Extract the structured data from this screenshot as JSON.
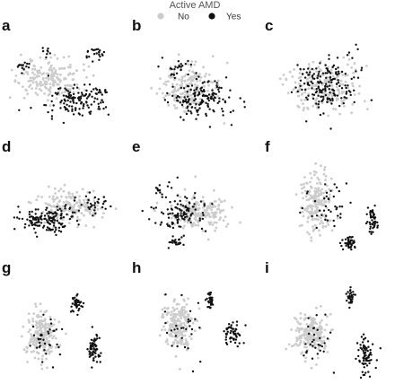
{
  "chart_data": {
    "type": "scatter",
    "legend": {
      "title": "Active AMD",
      "position": "top-center",
      "entries": [
        {
          "label": "No",
          "color": "#cccccc"
        },
        {
          "label": "Yes",
          "color": "#111111"
        }
      ]
    },
    "axes_visible": false,
    "grid": false,
    "panels": [
      {
        "label": "a",
        "no": [
          {
            "cx": 0.38,
            "cy": 0.4,
            "sx": 0.25,
            "sy": 0.18,
            "n": 190
          }
        ],
        "yes": [
          {
            "cx": 0.62,
            "cy": 0.62,
            "sx": 0.22,
            "sy": 0.13,
            "n": 140
          },
          {
            "cx": 0.78,
            "cy": 0.18,
            "sx": 0.08,
            "sy": 0.05,
            "n": 22
          },
          {
            "cx": 0.12,
            "cy": 0.3,
            "sx": 0.06,
            "sy": 0.08,
            "n": 14
          },
          {
            "cx": 0.35,
            "cy": 0.12,
            "sx": 0.05,
            "sy": 0.04,
            "n": 8
          }
        ]
      },
      {
        "label": "b",
        "no": [
          {
            "cx": 0.45,
            "cy": 0.5,
            "sx": 0.22,
            "sy": 0.22,
            "n": 180
          }
        ],
        "yes": [
          {
            "cx": 0.55,
            "cy": 0.62,
            "sx": 0.22,
            "sy": 0.15,
            "n": 150
          },
          {
            "cx": 0.35,
            "cy": 0.3,
            "sx": 0.1,
            "sy": 0.08,
            "n": 25
          }
        ]
      },
      {
        "label": "c",
        "no": [
          {
            "cx": 0.5,
            "cy": 0.5,
            "sx": 0.25,
            "sy": 0.22,
            "n": 200
          }
        ],
        "yes": [
          {
            "cx": 0.5,
            "cy": 0.5,
            "sx": 0.22,
            "sy": 0.25,
            "n": 170
          }
        ]
      },
      {
        "label": "d",
        "no": [
          {
            "cx": 0.55,
            "cy": 0.5,
            "sx": 0.25,
            "sy": 0.15,
            "n": 180
          }
        ],
        "yes": [
          {
            "cx": 0.35,
            "cy": 0.62,
            "sx": 0.22,
            "sy": 0.12,
            "n": 150
          },
          {
            "cx": 0.75,
            "cy": 0.45,
            "sx": 0.12,
            "sy": 0.1,
            "n": 30
          }
        ]
      },
      {
        "label": "e",
        "no": [
          {
            "cx": 0.55,
            "cy": 0.55,
            "sx": 0.22,
            "sy": 0.15,
            "n": 180
          }
        ],
        "yes": [
          {
            "cx": 0.4,
            "cy": 0.55,
            "sx": 0.22,
            "sy": 0.15,
            "n": 110
          },
          {
            "cx": 0.35,
            "cy": 0.85,
            "sx": 0.05,
            "sy": 0.05,
            "n": 22
          },
          {
            "cx": 0.2,
            "cy": 0.3,
            "sx": 0.06,
            "sy": 0.05,
            "n": 12
          }
        ]
      },
      {
        "label": "f",
        "no": [
          {
            "cx": 0.4,
            "cy": 0.45,
            "sx": 0.1,
            "sy": 0.25,
            "n": 200
          }
        ],
        "yes": [
          {
            "cx": 0.7,
            "cy": 0.85,
            "sx": 0.05,
            "sy": 0.05,
            "n": 45
          },
          {
            "cx": 0.92,
            "cy": 0.62,
            "sx": 0.04,
            "sy": 0.12,
            "n": 45
          },
          {
            "cx": 0.5,
            "cy": 0.5,
            "sx": 0.18,
            "sy": 0.22,
            "n": 40
          }
        ]
      },
      {
        "label": "g",
        "no": [
          {
            "cx": 0.3,
            "cy": 0.55,
            "sx": 0.12,
            "sy": 0.2,
            "n": 200
          }
        ],
        "yes": [
          {
            "cx": 0.62,
            "cy": 0.25,
            "sx": 0.05,
            "sy": 0.07,
            "n": 40
          },
          {
            "cx": 0.78,
            "cy": 0.7,
            "sx": 0.05,
            "sy": 0.12,
            "n": 60
          },
          {
            "cx": 0.35,
            "cy": 0.6,
            "sx": 0.12,
            "sy": 0.18,
            "n": 35
          }
        ]
      },
      {
        "label": "h",
        "no": [
          {
            "cx": 0.35,
            "cy": 0.45,
            "sx": 0.12,
            "sy": 0.2,
            "n": 200
          }
        ],
        "yes": [
          {
            "cx": 0.65,
            "cy": 0.2,
            "sx": 0.03,
            "sy": 0.08,
            "n": 30
          },
          {
            "cx": 0.85,
            "cy": 0.55,
            "sx": 0.06,
            "sy": 0.08,
            "n": 55
          },
          {
            "cx": 0.4,
            "cy": 0.55,
            "sx": 0.15,
            "sy": 0.25,
            "n": 30
          }
        ]
      },
      {
        "label": "i",
        "no": [
          {
            "cx": 0.35,
            "cy": 0.55,
            "sx": 0.12,
            "sy": 0.18,
            "n": 200
          }
        ],
        "yes": [
          {
            "cx": 0.72,
            "cy": 0.18,
            "sx": 0.03,
            "sy": 0.08,
            "n": 30
          },
          {
            "cx": 0.85,
            "cy": 0.75,
            "sx": 0.07,
            "sy": 0.15,
            "n": 70
          },
          {
            "cx": 0.4,
            "cy": 0.6,
            "sx": 0.12,
            "sy": 0.2,
            "n": 30
          }
        ]
      }
    ]
  }
}
